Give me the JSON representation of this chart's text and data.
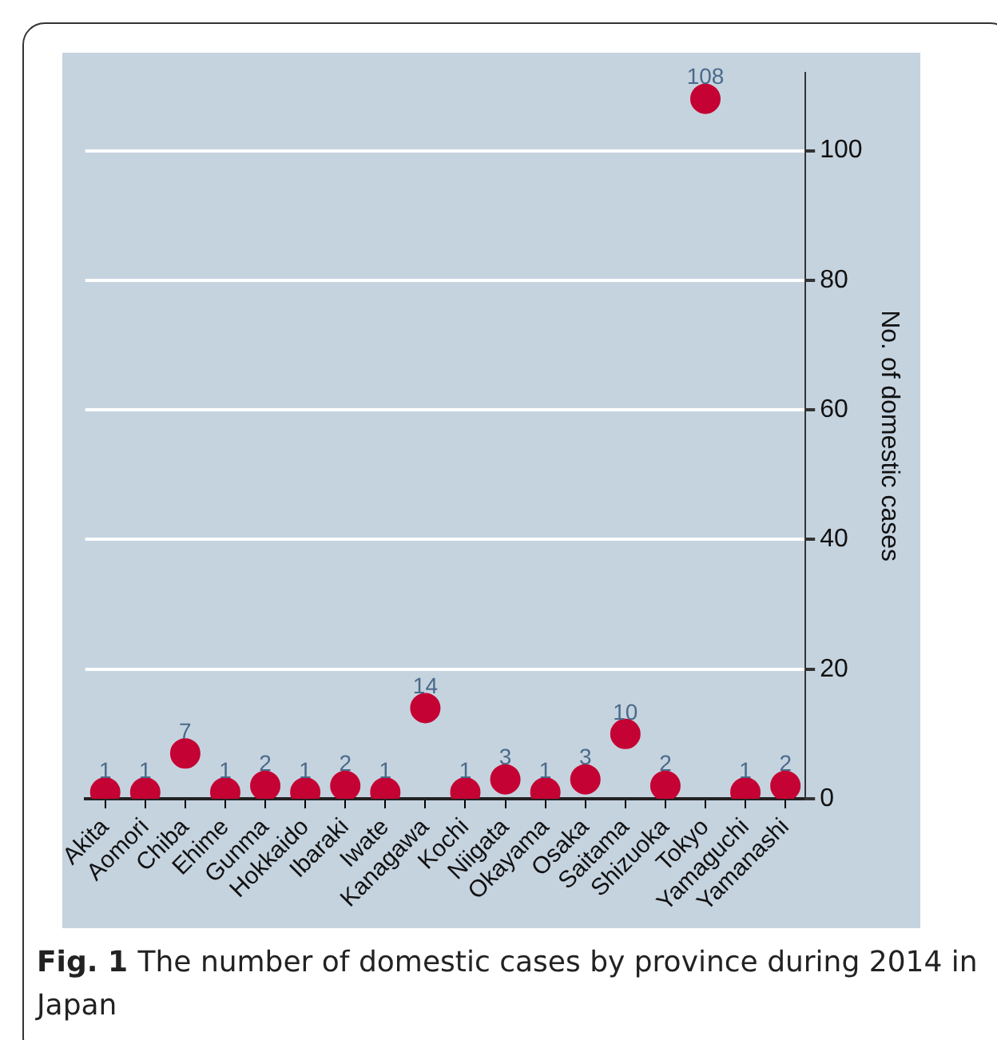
{
  "chart_data": {
    "type": "scatter",
    "categories": [
      "Akita",
      "Aomori",
      "Chiba",
      "Ehime",
      "Gunma",
      "Hokkaido",
      "Ibaraki",
      "Iwate",
      "Kanagawa",
      "Kochi",
      "Niigata",
      "Okayama",
      "Osaka",
      "Saitama",
      "Shizuoka",
      "Tokyo",
      "Yamaguchi",
      "Yamanashi"
    ],
    "series": [
      {
        "color": "#c40233",
        "values": [
          1,
          1,
          7,
          1,
          2,
          1,
          2,
          1,
          14,
          1,
          3,
          1,
          3,
          10,
          2,
          108,
          1,
          2
        ]
      }
    ],
    "ylabel": "No. of domestic cases",
    "ylim": [
      0,
      112
    ],
    "yticks": [
      0,
      20,
      40,
      60,
      80,
      100
    ],
    "grid": "y",
    "legend": false,
    "marker": "circle",
    "data_labels": true,
    "annotations": [
      "Fig. 1",
      "The number of domestic cases by province during 2014 in Japan"
    ]
  }
}
